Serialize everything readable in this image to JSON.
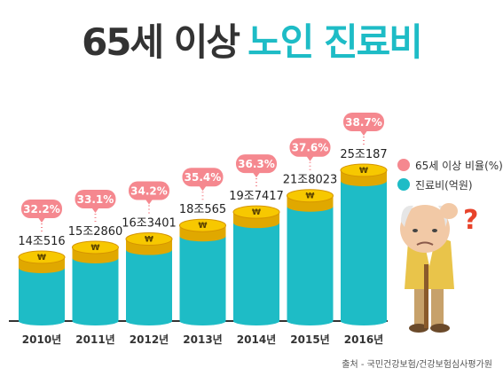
{
  "title": {
    "part1": "65세 이상",
    "part2": "노인 진료비"
  },
  "legend": [
    {
      "label": "65세 이상 비율(%)",
      "color": "#f5888f"
    },
    {
      "label": "진료비(억원)",
      "color": "#1ebcc6"
    }
  ],
  "source": "출처 - 국민건강보험/건강보험심사평가원",
  "colors": {
    "bar": "#1ebcc6",
    "coin": "#f7c800",
    "bubble": "#f5888f",
    "title_dark": "#333333",
    "title_accent": "#1ebcc6"
  },
  "chart_data": {
    "type": "bar",
    "categories": [
      "2010년",
      "2011년",
      "2012년",
      "2013년",
      "2014년",
      "2015년",
      "2016년"
    ],
    "series": [
      {
        "name": "진료비(억원)",
        "values": [
          140516,
          152860,
          163401,
          180565,
          197417,
          218023,
          250187
        ],
        "labels": [
          "14조516",
          "15조2860",
          "16조3401",
          "18조565",
          "19조7417",
          "21조8023",
          "25조187"
        ]
      },
      {
        "name": "65세 이상 비율(%)",
        "values": [
          32.2,
          33.1,
          34.2,
          35.4,
          36.3,
          37.6,
          38.7
        ],
        "labels": [
          "32.2%",
          "33.1%",
          "34.2%",
          "35.4%",
          "36.3%",
          "37.6%",
          "38.7%"
        ]
      }
    ]
  }
}
